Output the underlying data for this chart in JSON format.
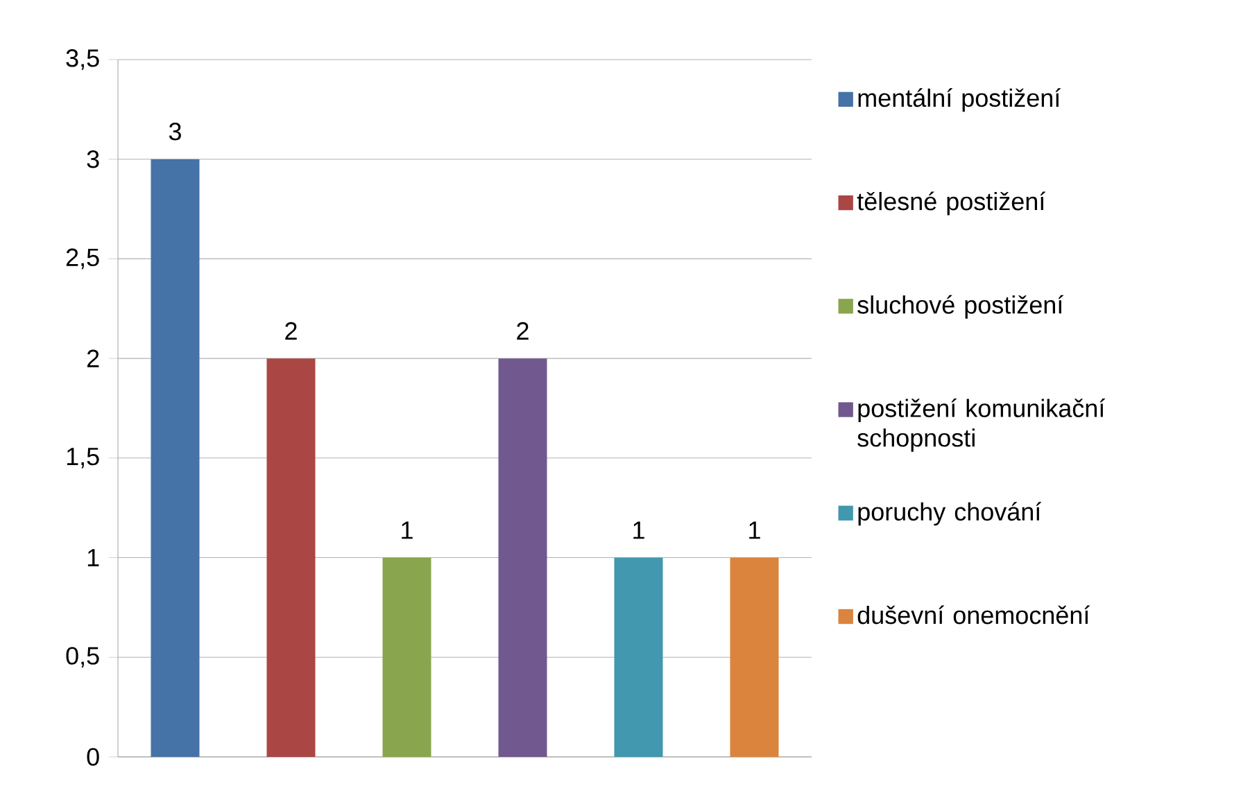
{
  "chart_data": {
    "type": "bar",
    "categories": [
      null
    ],
    "series": [
      {
        "name": "mentální postižení",
        "color": "#4572a7",
        "values": [
          3
        ]
      },
      {
        "name": "tělesné postižení",
        "color": "#aa4643",
        "values": [
          2
        ]
      },
      {
        "name": "sluchové postižení",
        "color": "#89a54e",
        "values": [
          1
        ]
      },
      {
        "name": "postižení komunikační schopnosti",
        "color": "#71588f",
        "values": [
          2
        ]
      },
      {
        "name": "poruchy chování",
        "color": "#4198af",
        "values": [
          1
        ]
      },
      {
        "name": "duševní onemocnění",
        "color": "#db843d",
        "values": [
          1
        ]
      }
    ],
    "ylim": [
      0,
      3.5
    ],
    "yticks": [
      0,
      {
        "value": 0.5,
        "label": "0,5"
      },
      1,
      {
        "value": 1.5,
        "label": "1,5"
      },
      2,
      {
        "value": 2.5,
        "label": "2,5"
      },
      3,
      {
        "value": 3.5,
        "label": "3,5"
      }
    ],
    "grid": "y",
    "legend": "right",
    "data_labels": true
  }
}
